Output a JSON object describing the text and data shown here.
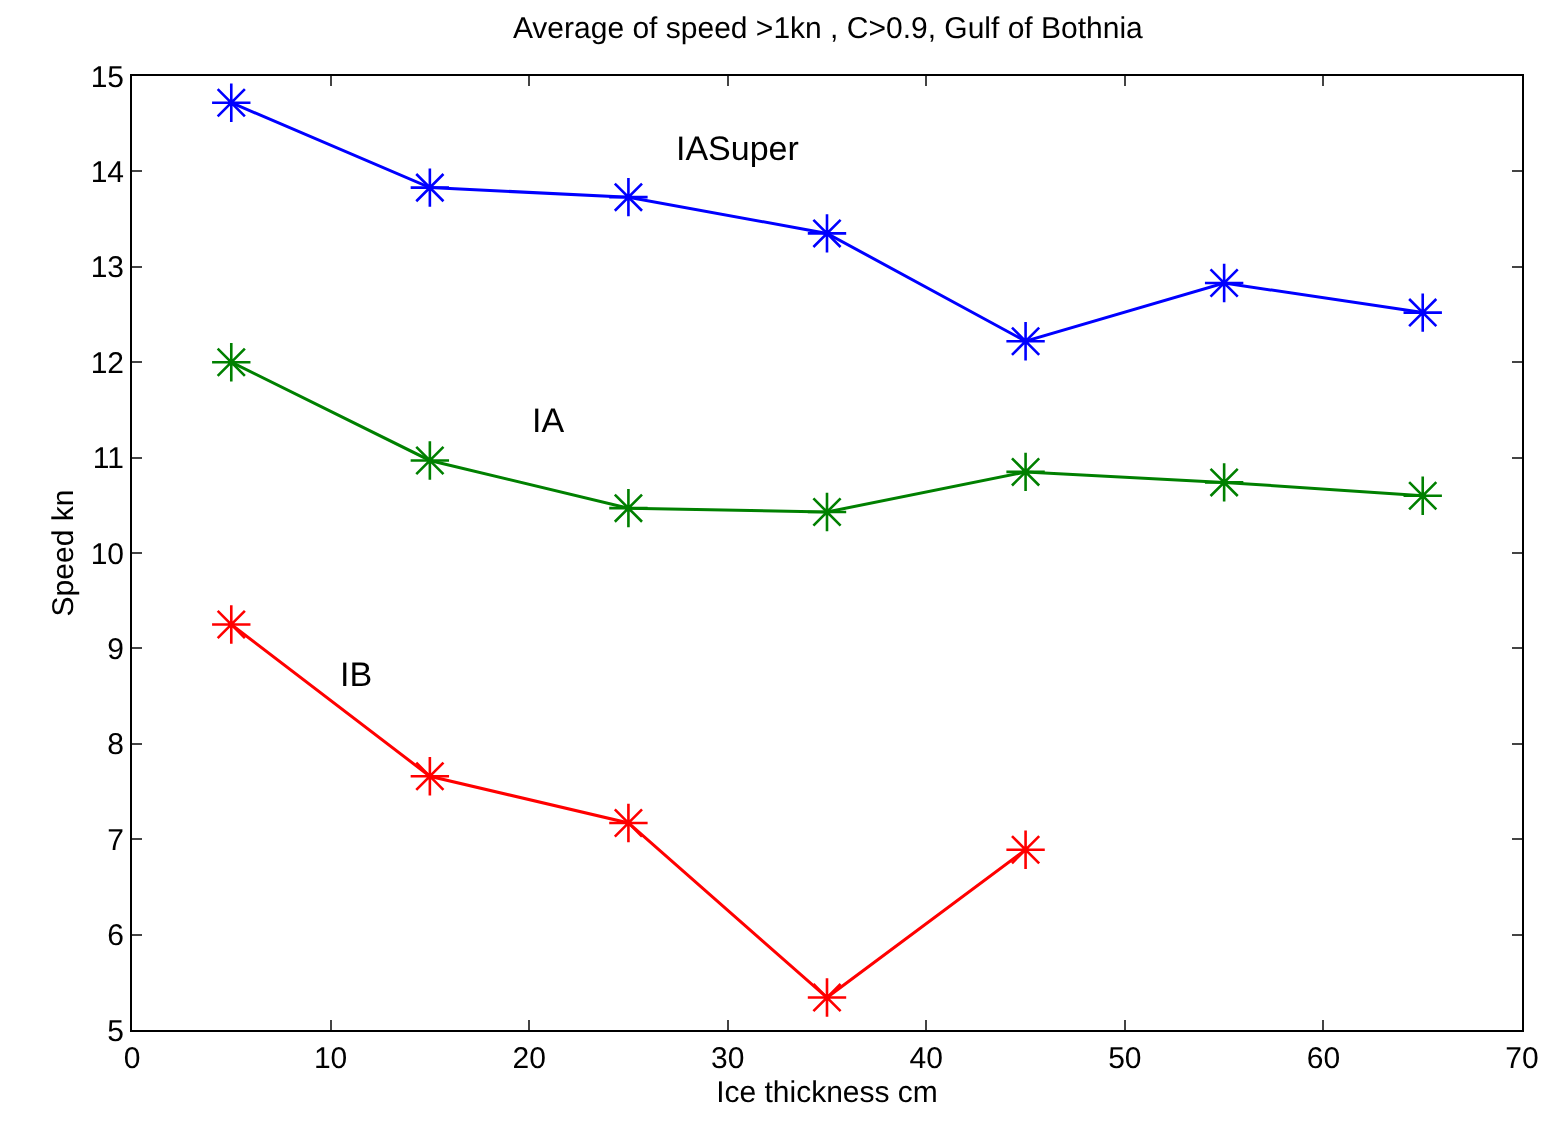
{
  "chart_data": {
    "type": "line",
    "title": "Average of speed >1kn , C>0.9, Gulf of Bothnia",
    "xlabel": "Ice thickness cm",
    "ylabel": "Speed kn",
    "x": [
      5,
      15,
      25,
      35,
      45,
      55,
      65
    ],
    "series": [
      {
        "name": "IASuper",
        "color": "#0000ff",
        "values": [
          14.72,
          13.83,
          13.73,
          13.35,
          12.22,
          12.83,
          12.52
        ]
      },
      {
        "name": "IA",
        "color": "#008000",
        "values": [
          12.0,
          10.97,
          10.47,
          10.43,
          10.85,
          10.74,
          10.6
        ]
      },
      {
        "name": "IB",
        "color": "#ff0000",
        "values": [
          9.25,
          7.66,
          7.17,
          5.34,
          6.89,
          null,
          null
        ]
      }
    ],
    "xlim": [
      0,
      70
    ],
    "xticks": [
      0,
      10,
      20,
      30,
      40,
      50,
      60,
      70
    ],
    "ylim": [
      5,
      15
    ],
    "yticks": [
      5,
      6,
      7,
      8,
      9,
      10,
      11,
      12,
      13,
      14,
      15
    ],
    "marker": "cross",
    "line_style": "solid"
  }
}
